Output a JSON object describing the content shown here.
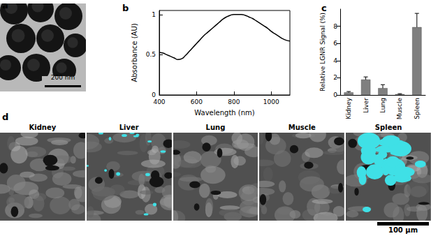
{
  "chart_data": [
    {
      "type": "line",
      "title": "b",
      "x": [
        400,
        420,
        440,
        460,
        480,
        500,
        520,
        540,
        560,
        580,
        600,
        620,
        640,
        660,
        680,
        700,
        720,
        740,
        760,
        780,
        800,
        820,
        840,
        860,
        880,
        900,
        920,
        940,
        960,
        980,
        1000,
        1020,
        1040,
        1060,
        1080,
        1100
      ],
      "values": [
        0.53,
        0.52,
        0.5,
        0.48,
        0.46,
        0.44,
        0.45,
        0.49,
        0.54,
        0.59,
        0.64,
        0.69,
        0.74,
        0.78,
        0.82,
        0.86,
        0.9,
        0.94,
        0.97,
        0.99,
        1.0,
        1.0,
        1.0,
        0.99,
        0.97,
        0.95,
        0.92,
        0.89,
        0.86,
        0.83,
        0.79,
        0.76,
        0.73,
        0.7,
        0.68,
        0.67
      ],
      "color": "#000000",
      "xlabel": "Wavelength (nm)",
      "ylabel": "Absorbance (AU)",
      "xlim": [
        400,
        1100
      ],
      "xticks": [
        400,
        600,
        800,
        1000
      ],
      "ylim": [
        0,
        1.05
      ],
      "yticks": [
        0,
        0.5,
        1
      ],
      "grid": false
    },
    {
      "type": "bar",
      "title": "c",
      "categories": [
        "Kidney",
        "Liver",
        "Lung",
        "Muscle",
        "Spleen"
      ],
      "values": [
        0.3,
        1.8,
        0.8,
        0.1,
        7.9
      ],
      "errors": [
        0.1,
        0.3,
        0.4,
        0.05,
        1.6
      ],
      "color": "#7f7f7f",
      "ylabel": "Relative LGNR Signal (%)",
      "ylim": [
        0,
        10
      ],
      "yticks": [
        0,
        2,
        4,
        6,
        8
      ],
      "grid": false
    }
  ],
  "images": [
    {
      "label": "a",
      "scale_bar": "200 nm"
    },
    {
      "label": "d",
      "titles": [
        "Kidney",
        "Liver",
        "Lung",
        "Muscle",
        "Spleen"
      ],
      "scale_bar": "100 µm"
    }
  ]
}
